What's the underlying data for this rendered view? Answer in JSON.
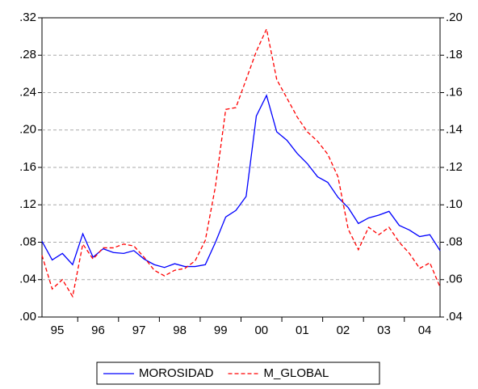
{
  "chart_data": {
    "type": "line",
    "categories": [
      null,
      "95",
      null,
      null,
      null,
      "96",
      null,
      null,
      null,
      "97",
      null,
      null,
      null,
      "98",
      null,
      null,
      null,
      "99",
      null,
      null,
      null,
      "00",
      null,
      null,
      null,
      "01",
      null,
      null,
      null,
      "02",
      null,
      null,
      null,
      "03",
      null,
      null,
      null,
      "04",
      null,
      null
    ],
    "series": [
      {
        "name": "MOROSIDAD",
        "color": "#0000ff",
        "line_style": "solid",
        "values": [
          0.081,
          0.061,
          0.068,
          0.056,
          0.089,
          0.064,
          0.073,
          0.069,
          0.068,
          0.071,
          0.062,
          0.056,
          0.053,
          0.057,
          0.054,
          0.054,
          0.056,
          0.08,
          0.107,
          0.114,
          0.129,
          0.215,
          0.237,
          0.198,
          0.189,
          0.175,
          0.164,
          0.15,
          0.144,
          0.128,
          0.117,
          0.1,
          0.106,
          0.109,
          0.113,
          0.098,
          0.093,
          0.086,
          0.088,
          0.071
        ]
      },
      {
        "name": "M_GLOBAL",
        "color": "#ff0000",
        "line_style": "dashed",
        "axis": "y2",
        "values": [
          0.073,
          0.055,
          0.06,
          0.051,
          0.079,
          0.071,
          0.077,
          0.077,
          0.079,
          0.078,
          0.072,
          0.065,
          0.062,
          0.065,
          0.066,
          0.07,
          0.081,
          0.11,
          0.151,
          0.152,
          0.167,
          0.182,
          0.194,
          0.167,
          0.157,
          0.147,
          0.139,
          0.134,
          0.127,
          0.115,
          0.087,
          0.076,
          0.088,
          0.084,
          0.088,
          0.08,
          0.074,
          0.066,
          0.069,
          0.056
        ]
      }
    ],
    "ylim": [
      0,
      0.32
    ],
    "yticks": [
      {
        "value": 0,
        "label": ".00"
      },
      {
        "value": 0.04,
        "label": ".04"
      },
      {
        "value": 0.08,
        "label": ".08"
      },
      {
        "value": 0.12,
        "label": ".12"
      },
      {
        "value": 0.16,
        "label": ".16"
      },
      {
        "value": 0.2,
        "label": ".20"
      },
      {
        "value": 0.24,
        "label": ".24"
      },
      {
        "value": 0.28,
        "label": ".28"
      },
      {
        "value": 0.32,
        "label": ".32"
      }
    ],
    "y2lim": [
      0.04,
      0.2
    ],
    "y2ticks": [
      {
        "value": 0.04,
        "label": ".04"
      },
      {
        "value": 0.06,
        "label": ".06"
      },
      {
        "value": 0.08,
        "label": ".08"
      },
      {
        "value": 0.1,
        "label": ".10"
      },
      {
        "value": 0.12,
        "label": ".12"
      },
      {
        "value": 0.14,
        "label": ".14"
      },
      {
        "value": 0.16,
        "label": ".16"
      },
      {
        "value": 0.18,
        "label": ".18"
      },
      {
        "value": 0.2,
        "label": ".20"
      }
    ],
    "grid": true,
    "legend": "bottom"
  }
}
